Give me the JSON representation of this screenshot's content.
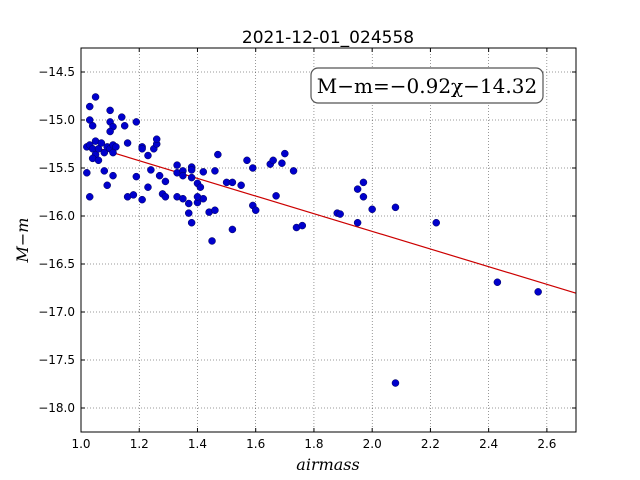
{
  "chart_data": {
    "type": "scatter",
    "title": "2021-12-01_024558",
    "xlabel": "airmass",
    "ylabel": "M−m",
    "xlim": [
      1.0,
      2.7
    ],
    "ylim": [
      -18.25,
      -14.25
    ],
    "xticks": [
      1.0,
      1.2,
      1.4,
      1.6,
      1.8,
      2.0,
      2.2,
      2.4,
      2.6
    ],
    "xtick_labels": [
      "1.0",
      "1.2",
      "1.4",
      "1.6",
      "1.8",
      "2.0",
      "2.2",
      "2.4",
      "2.6"
    ],
    "yticks": [
      -14.5,
      -15.0,
      -15.5,
      -16.0,
      -16.5,
      -17.0,
      -17.5,
      -18.0
    ],
    "ytick_labels": [
      "−14.5",
      "−15.0",
      "−15.5",
      "−16.0",
      "−16.5",
      "−17.0",
      "−17.5",
      "−18.0"
    ],
    "grid": true,
    "annotation": "M−m=−0.92χ−14.32",
    "fit": {
      "slope": -0.92,
      "intercept": -14.32,
      "color": "#cc0000"
    },
    "point_color": "#0000cc",
    "points": [
      [
        1.03,
        -14.86
      ],
      [
        1.05,
        -14.76
      ],
      [
        1.03,
        -15.0
      ],
      [
        1.04,
        -15.06
      ],
      [
        1.1,
        -14.9
      ],
      [
        1.1,
        -15.02
      ],
      [
        1.14,
        -14.97
      ],
      [
        1.11,
        -15.07
      ],
      [
        1.15,
        -15.06
      ],
      [
        1.1,
        -15.12
      ],
      [
        1.19,
        -15.02
      ],
      [
        1.02,
        -15.28
      ],
      [
        1.03,
        -15.26
      ],
      [
        1.04,
        -15.3
      ],
      [
        1.05,
        -15.22
      ],
      [
        1.05,
        -15.36
      ],
      [
        1.04,
        -15.4
      ],
      [
        1.06,
        -15.42
      ],
      [
        1.06,
        -15.3
      ],
      [
        1.08,
        -15.34
      ],
      [
        1.07,
        -15.24
      ],
      [
        1.09,
        -15.28
      ],
      [
        1.1,
        -15.3
      ],
      [
        1.11,
        -15.26
      ],
      [
        1.12,
        -15.28
      ],
      [
        1.11,
        -15.34
      ],
      [
        1.02,
        -15.55
      ],
      [
        1.03,
        -15.8
      ],
      [
        1.08,
        -15.53
      ],
      [
        1.09,
        -15.68
      ],
      [
        1.11,
        -15.58
      ],
      [
        1.16,
        -15.24
      ],
      [
        1.21,
        -15.28
      ],
      [
        1.21,
        -15.3
      ],
      [
        1.23,
        -15.37
      ],
      [
        1.25,
        -15.3
      ],
      [
        1.26,
        -15.25
      ],
      [
        1.26,
        -15.2
      ],
      [
        1.24,
        -15.52
      ],
      [
        1.23,
        -15.7
      ],
      [
        1.27,
        -15.58
      ],
      [
        1.29,
        -15.64
      ],
      [
        1.28,
        -15.77
      ],
      [
        1.29,
        -15.8
      ],
      [
        1.19,
        -15.59
      ],
      [
        1.16,
        -15.8
      ],
      [
        1.18,
        -15.78
      ],
      [
        1.21,
        -15.83
      ],
      [
        1.33,
        -15.47
      ],
      [
        1.33,
        -15.55
      ],
      [
        1.35,
        -15.53
      ],
      [
        1.35,
        -15.58
      ],
      [
        1.38,
        -15.49
      ],
      [
        1.38,
        -15.52
      ],
      [
        1.38,
        -15.6
      ],
      [
        1.4,
        -15.66
      ],
      [
        1.41,
        -15.7
      ],
      [
        1.42,
        -15.54
      ],
      [
        1.33,
        -15.8
      ],
      [
        1.35,
        -15.82
      ],
      [
        1.37,
        -15.87
      ],
      [
        1.4,
        -15.86
      ],
      [
        1.42,
        -15.82
      ],
      [
        1.37,
        -15.97
      ],
      [
        1.38,
        -16.07
      ],
      [
        1.44,
        -15.96
      ],
      [
        1.46,
        -15.94
      ],
      [
        1.45,
        -16.26
      ],
      [
        1.4,
        -15.8
      ],
      [
        1.46,
        -15.53
      ],
      [
        1.47,
        -15.36
      ],
      [
        1.5,
        -15.65
      ],
      [
        1.52,
        -15.65
      ],
      [
        1.55,
        -15.68
      ],
      [
        1.57,
        -15.42
      ],
      [
        1.59,
        -15.5
      ],
      [
        1.52,
        -16.14
      ],
      [
        1.59,
        -15.89
      ],
      [
        1.6,
        -15.94
      ],
      [
        1.65,
        -15.46
      ],
      [
        1.66,
        -15.42
      ],
      [
        1.69,
        -15.45
      ],
      [
        1.7,
        -15.35
      ],
      [
        1.73,
        -15.53
      ],
      [
        1.67,
        -15.79
      ],
      [
        1.74,
        -16.12
      ],
      [
        1.76,
        -16.1
      ],
      [
        1.88,
        -15.97
      ],
      [
        1.89,
        -15.98
      ],
      [
        1.95,
        -15.72
      ],
      [
        1.97,
        -15.65
      ],
      [
        1.97,
        -15.8
      ],
      [
        2.0,
        -15.93
      ],
      [
        1.95,
        -16.07
      ],
      [
        2.08,
        -15.91
      ],
      [
        2.08,
        -17.74
      ],
      [
        2.22,
        -16.07
      ],
      [
        2.43,
        -16.69
      ],
      [
        2.57,
        -16.79
      ]
    ]
  }
}
